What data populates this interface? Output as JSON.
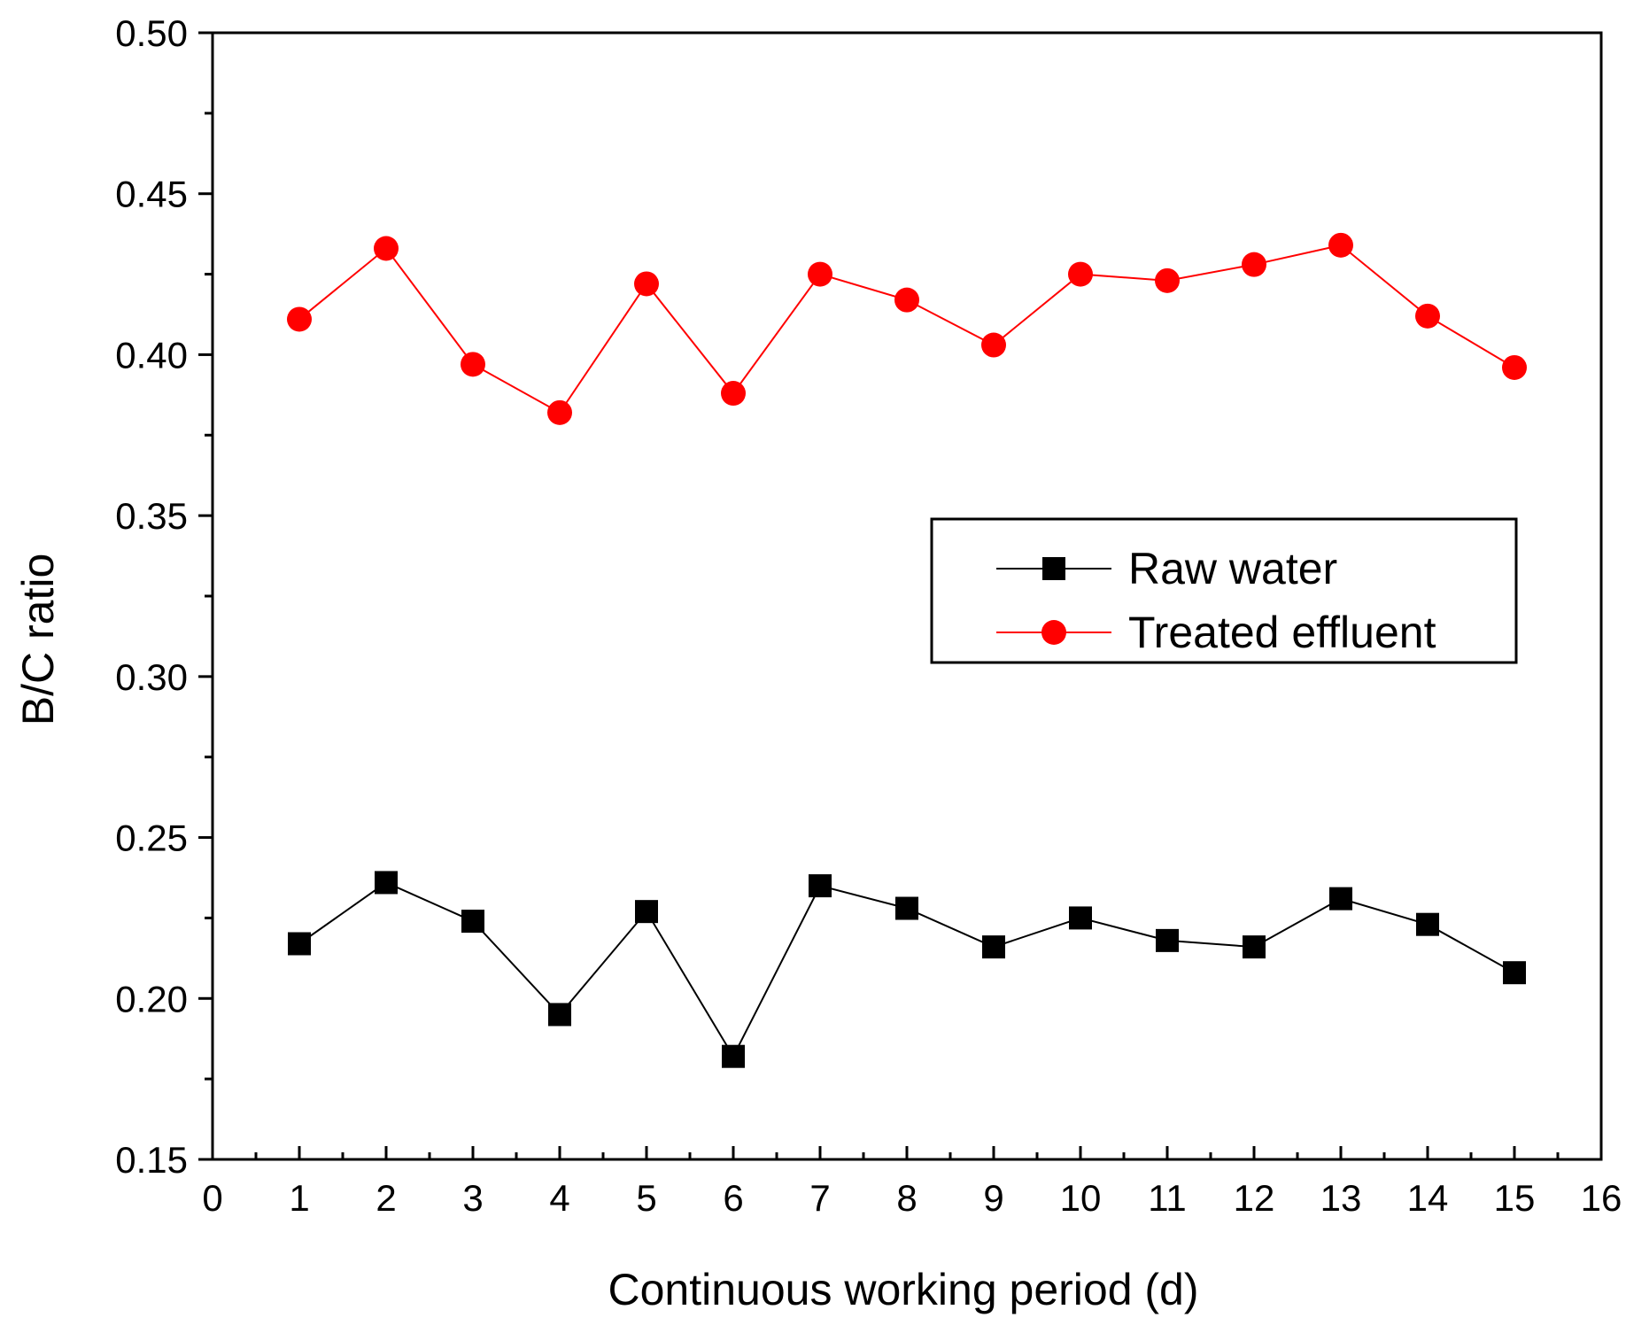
{
  "chart_data": {
    "type": "line",
    "title": "",
    "xlabel": "Continuous working period (d)",
    "ylabel": "B/C ratio",
    "xlim": [
      0,
      16
    ],
    "ylim": [
      0.15,
      0.5
    ],
    "xticks": [
      "0",
      "1",
      "2",
      "3",
      "4",
      "5",
      "6",
      "7",
      "8",
      "9",
      "10",
      "11",
      "12",
      "13",
      "14",
      "15",
      "16"
    ],
    "yticks": [
      "0.15",
      "0.20",
      "0.25",
      "0.30",
      "0.35",
      "0.40",
      "0.45",
      "0.50"
    ],
    "x": [
      1,
      2,
      3,
      4,
      5,
      6,
      7,
      8,
      9,
      10,
      11,
      12,
      13,
      14,
      15
    ],
    "series": [
      {
        "name": "Raw water",
        "color": "#000000",
        "marker": "square",
        "values": [
          0.217,
          0.236,
          0.224,
          0.195,
          0.227,
          0.182,
          0.235,
          0.228,
          0.216,
          0.225,
          0.218,
          0.216,
          0.231,
          0.223,
          0.208
        ]
      },
      {
        "name": "Treated effluent",
        "color": "#ff0000",
        "marker": "circle",
        "values": [
          0.411,
          0.433,
          0.397,
          0.382,
          0.422,
          0.388,
          0.425,
          0.417,
          0.403,
          0.425,
          0.423,
          0.428,
          0.434,
          0.412,
          0.396
        ]
      }
    ],
    "legend": "center-right",
    "grid": false
  }
}
